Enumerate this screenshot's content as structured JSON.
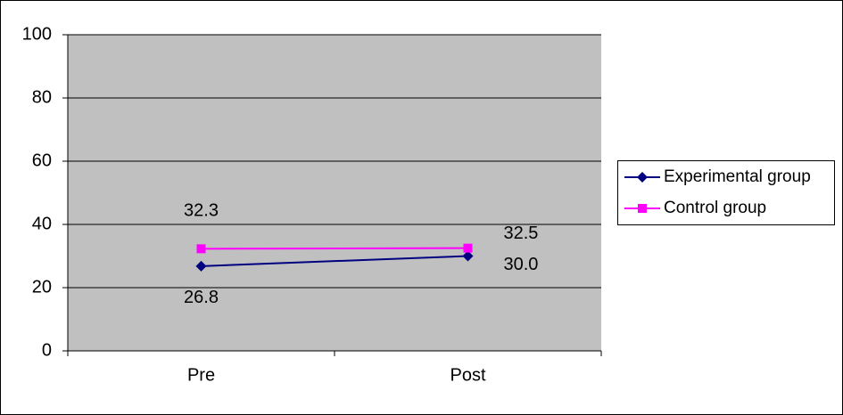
{
  "chart_data": {
    "type": "line",
    "categories": [
      "Pre",
      "Post"
    ],
    "series": [
      {
        "name": "Experimental group",
        "color": "#000080",
        "marker": "diamond",
        "values": [
          26.8,
          30.0
        ],
        "value_labels": [
          "26.8",
          "30.0"
        ]
      },
      {
        "name": "Control group",
        "color": "#ff00ff",
        "marker": "square",
        "values": [
          32.3,
          32.5
        ],
        "value_labels": [
          "32.3",
          "32.5"
        ]
      }
    ],
    "ylim": [
      0,
      100
    ],
    "yticks": [
      0,
      20,
      40,
      60,
      80,
      100
    ],
    "grid": true,
    "legend": "right"
  }
}
